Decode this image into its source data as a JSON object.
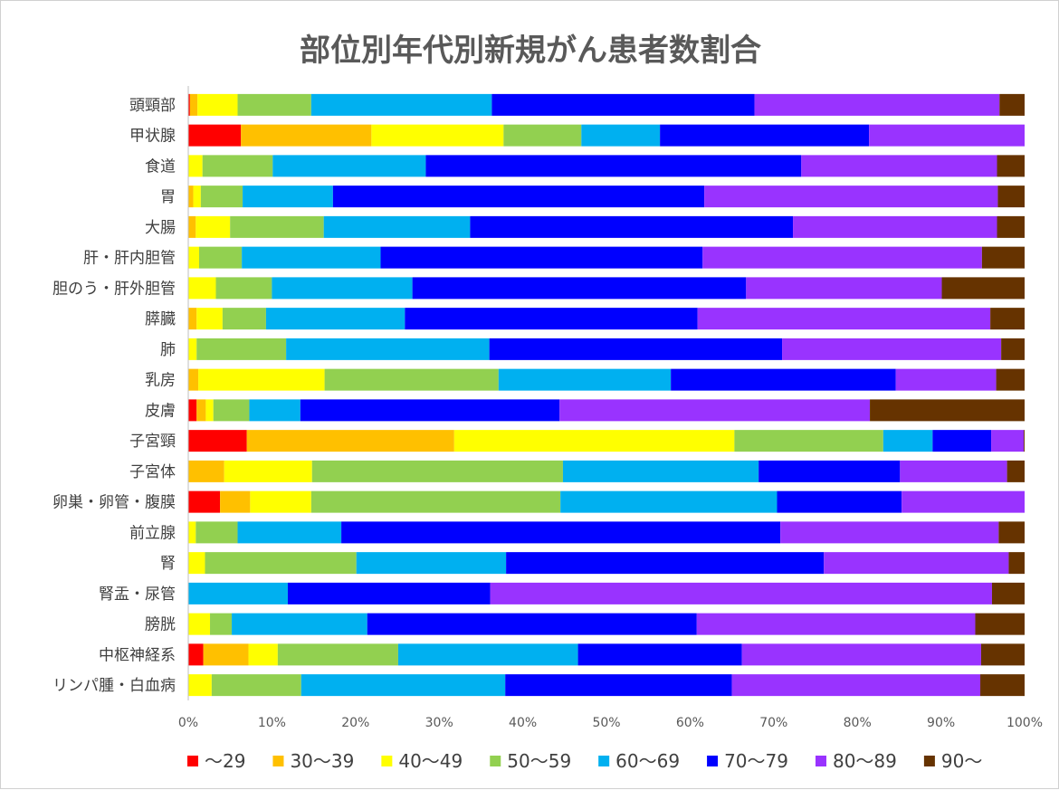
{
  "chart_data": {
    "type": "bar",
    "orientation": "horizontal",
    "stacked": "percent",
    "title": "部位別年代別新規がん患者数割合",
    "xlabel": "",
    "ylabel": "",
    "xlim": [
      0,
      100
    ],
    "x_ticks": [
      "0%",
      "10%",
      "20%",
      "30%",
      "40%",
      "50%",
      "60%",
      "70%",
      "80%",
      "90%",
      "100%"
    ],
    "grid": false,
    "legend_position": "bottom",
    "categories": [
      "頭頸部",
      "甲状腺",
      "食道",
      "胃",
      "大腸",
      "肝・肝内胆管",
      "胆のう・肝外胆管",
      "膵臓",
      "肺",
      "乳房",
      "皮膚",
      "子宮頸",
      "子宮体",
      "卵巣・卵管・腹膜",
      "前立腺",
      "腎",
      "腎盂・尿管",
      "膀胱",
      "中枢神経系",
      "リンパ腫・白血病"
    ],
    "series": [
      {
        "name": "～29",
        "color": "#ff0000",
        "values": [
          0.2,
          6.3,
          0,
          0,
          0,
          0,
          0,
          0,
          0,
          0,
          1.0,
          7.0,
          0,
          3.8,
          0,
          0,
          0,
          0,
          1.8,
          0
        ]
      },
      {
        "name": "30～39",
        "color": "#ffc000",
        "values": [
          0.9,
          15.6,
          0,
          0.6,
          0.9,
          0,
          0,
          1.0,
          0,
          1.2,
          1.1,
          24.8,
          4.3,
          3.6,
          0,
          0,
          0,
          0,
          5.4,
          0
        ]
      },
      {
        "name": "40～49",
        "color": "#ffff00",
        "values": [
          4.8,
          15.8,
          1.7,
          0.9,
          4.1,
          1.3,
          3.3,
          3.1,
          1.0,
          15.1,
          0.9,
          33.5,
          10.5,
          7.3,
          0.9,
          2.0,
          0,
          2.6,
          3.5,
          2.8
        ]
      },
      {
        "name": "50～59",
        "color": "#92d050",
        "values": [
          8.8,
          9.3,
          8.4,
          5.0,
          11.2,
          5.1,
          6.7,
          5.2,
          10.7,
          20.8,
          4.3,
          17.8,
          30.0,
          29.8,
          5.0,
          18.1,
          0,
          2.6,
          14.4,
          10.7
        ]
      },
      {
        "name": "60～69",
        "color": "#00b0f0",
        "values": [
          21.6,
          9.4,
          18.3,
          10.8,
          17.5,
          16.6,
          16.8,
          16.6,
          24.3,
          20.6,
          6.1,
          5.9,
          23.4,
          25.9,
          12.4,
          17.9,
          11.9,
          16.2,
          21.5,
          24.4
        ]
      },
      {
        "name": "70～79",
        "color": "#0000ff",
        "values": [
          31.4,
          25.0,
          44.9,
          44.4,
          38.6,
          38.5,
          39.9,
          35.0,
          35.0,
          26.9,
          31.0,
          7.0,
          16.9,
          14.9,
          52.5,
          38.0,
          24.2,
          39.4,
          19.6,
          27.1
        ]
      },
      {
        "name": "80～89",
        "color": "#9933ff",
        "values": [
          29.3,
          18.6,
          23.4,
          35.1,
          24.4,
          33.4,
          23.4,
          35.0,
          26.2,
          12.0,
          37.1,
          3.9,
          12.8,
          14.7,
          26.1,
          22.1,
          60.0,
          33.3,
          28.6,
          29.7
        ]
      },
      {
        "name": "90～",
        "color": "#663300",
        "values": [
          3.0,
          0,
          3.3,
          3.2,
          3.3,
          5.1,
          9.9,
          4.1,
          2.8,
          3.4,
          18.5,
          0.1,
          2.1,
          0,
          3.1,
          1.9,
          3.9,
          5.9,
          5.2,
          5.3
        ]
      }
    ]
  }
}
